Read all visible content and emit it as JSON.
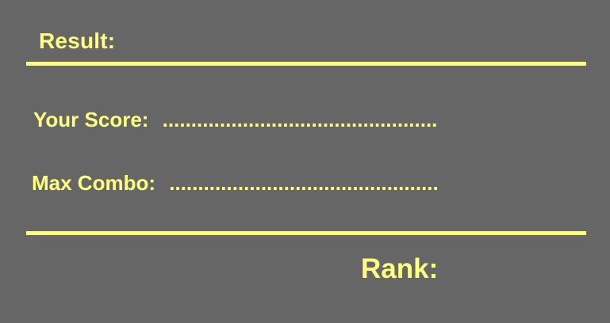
{
  "result": {
    "title": "Result:",
    "score_label": "Your Score:",
    "score_value": "................................................",
    "combo_label": "Max Combo:",
    "combo_value": "...............................................",
    "rank_label": "Rank:"
  },
  "colors": {
    "background": "#666666",
    "accent": "#ffff80"
  }
}
